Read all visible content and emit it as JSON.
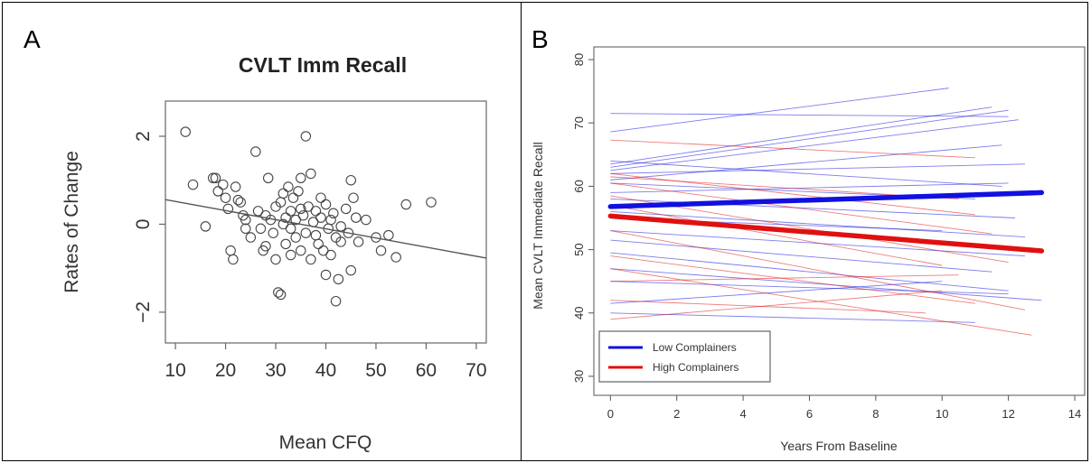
{
  "panel_labels": [
    "A",
    "B"
  ],
  "chart_data": [
    {
      "type": "scatter",
      "panel": "A",
      "title": "CVLT Imm Recall",
      "xlabel": "Mean CFQ",
      "ylabel": "Rates of Change",
      "xlim": [
        8,
        72
      ],
      "ylim": [
        -2.7,
        2.8
      ],
      "xticks": [
        10,
        20,
        30,
        40,
        50,
        60,
        70
      ],
      "yticks": [
        -2,
        0,
        2
      ],
      "grid": false,
      "marker": "open-circle",
      "points": [
        [
          12,
          2.1
        ],
        [
          13.5,
          0.9
        ],
        [
          16,
          -0.05
        ],
        [
          17.5,
          1.05
        ],
        [
          18,
          1.05
        ],
        [
          18.5,
          0.75
        ],
        [
          19.5,
          0.9
        ],
        [
          20,
          0.6
        ],
        [
          20.5,
          0.35
        ],
        [
          21,
          -0.6
        ],
        [
          21.5,
          -0.8
        ],
        [
          22,
          0.85
        ],
        [
          22.5,
          0.55
        ],
        [
          23,
          0.5
        ],
        [
          23.5,
          0.2
        ],
        [
          24,
          -0.1
        ],
        [
          25,
          -0.3
        ],
        [
          26,
          1.65
        ],
        [
          26.5,
          0.3
        ],
        [
          27,
          -0.1
        ],
        [
          27.5,
          -0.6
        ],
        [
          28,
          0.2
        ],
        [
          28.5,
          1.05
        ],
        [
          29,
          0.1
        ],
        [
          29.5,
          -0.2
        ],
        [
          30,
          -0.8
        ],
        [
          30.5,
          -1.55
        ],
        [
          31,
          -1.6
        ],
        [
          31,
          0.5
        ],
        [
          31.5,
          0.7
        ],
        [
          31.5,
          0.0
        ],
        [
          32,
          0.15
        ],
        [
          32,
          -0.45
        ],
        [
          32.5,
          0.85
        ],
        [
          33,
          0.3
        ],
        [
          33,
          -0.1
        ],
        [
          33.5,
          0.6
        ],
        [
          34,
          -0.3
        ],
        [
          34,
          0.1
        ],
        [
          34.5,
          0.75
        ],
        [
          35,
          1.05
        ],
        [
          35,
          -0.6
        ],
        [
          35.5,
          0.2
        ],
        [
          36,
          2.0
        ],
        [
          36,
          -0.2
        ],
        [
          36.5,
          0.4
        ],
        [
          37,
          1.15
        ],
        [
          37,
          -0.8
        ],
        [
          37.5,
          0.05
        ],
        [
          38,
          0.3
        ],
        [
          38.5,
          -0.45
        ],
        [
          39,
          0.15
        ],
        [
          39.5,
          -0.6
        ],
        [
          40,
          0.45
        ],
        [
          40,
          -1.15
        ],
        [
          40.5,
          -0.1
        ],
        [
          41,
          -0.7
        ],
        [
          41.5,
          0.25
        ],
        [
          42,
          -1.75
        ],
        [
          42,
          -0.3
        ],
        [
          42.5,
          -1.25
        ],
        [
          43,
          -0.05
        ],
        [
          44,
          0.35
        ],
        [
          44.5,
          -0.2
        ],
        [
          45,
          1.0
        ],
        [
          45,
          -1.05
        ],
        [
          45.5,
          0.6
        ],
        [
          46,
          0.15
        ],
        [
          46.5,
          -0.4
        ],
        [
          48,
          0.1
        ],
        [
          50,
          -0.3
        ],
        [
          51,
          -0.6
        ],
        [
          52.5,
          -0.25
        ],
        [
          54,
          -0.75
        ],
        [
          56,
          0.45
        ],
        [
          61,
          0.5
        ],
        [
          28,
          -0.5
        ],
        [
          30,
          0.4
        ],
        [
          33,
          -0.7
        ],
        [
          38,
          -0.25
        ],
        [
          41,
          0.1
        ],
        [
          43,
          -0.4
        ],
        [
          24,
          0.1
        ],
        [
          35,
          0.35
        ],
        [
          39,
          0.6
        ]
      ],
      "regression_line": [
        [
          8,
          0.56
        ],
        [
          72,
          -0.77
        ]
      ]
    },
    {
      "type": "line",
      "panel": "B",
      "xlabel": "Years From Baseline",
      "ylabel": "Mean CVLT Immediate Recall",
      "xlim": [
        -0.5,
        14.3
      ],
      "ylim": [
        27,
        82
      ],
      "xticks": [
        0,
        2,
        4,
        6,
        8,
        10,
        12,
        14
      ],
      "yticks": [
        30,
        40,
        50,
        60,
        70,
        80
      ],
      "grid": false,
      "legend": {
        "placement": "bottom-left",
        "entries": [
          {
            "label": "Low Complainers",
            "color": "#1010e0"
          },
          {
            "label": "High Complainers",
            "color": "#e01010"
          }
        ]
      },
      "series": [
        {
          "name": "Low Complainers",
          "color": "#1010e0",
          "x": [
            0,
            13
          ],
          "y": [
            56.8,
            59.0
          ]
        },
        {
          "name": "High Complainers",
          "color": "#e01010",
          "x": [
            0,
            13
          ],
          "y": [
            55.3,
            49.8
          ]
        }
      ],
      "individual_trajectories": [
        {
          "group": "low",
          "x": [
            0,
            10.2
          ],
          "y": [
            68.6,
            75.5
          ]
        },
        {
          "group": "low",
          "x": [
            0,
            12
          ],
          "y": [
            71.5,
            71.0
          ]
        },
        {
          "group": "low",
          "x": [
            0,
            11.5
          ],
          "y": [
            63.5,
            72.5
          ]
        },
        {
          "group": "low",
          "x": [
            0,
            12.3
          ],
          "y": [
            62.5,
            70.5
          ]
        },
        {
          "group": "low",
          "x": [
            0,
            11.8
          ],
          "y": [
            61.0,
            66.5
          ]
        },
        {
          "group": "low",
          "x": [
            0,
            12.5
          ],
          "y": [
            62.0,
            63.5
          ]
        },
        {
          "group": "low",
          "x": [
            0,
            11
          ],
          "y": [
            60.5,
            58.0
          ]
        },
        {
          "group": "low",
          "x": [
            0,
            12
          ],
          "y": [
            59.0,
            60.5
          ]
        },
        {
          "group": "low",
          "x": [
            0,
            12.2
          ],
          "y": [
            58.0,
            55.0
          ]
        },
        {
          "group": "low",
          "x": [
            0,
            10
          ],
          "y": [
            55.0,
            53.0
          ]
        },
        {
          "group": "low",
          "x": [
            0,
            12.5
          ],
          "y": [
            53.0,
            49.0
          ]
        },
        {
          "group": "low",
          "x": [
            0,
            11.5
          ],
          "y": [
            51.5,
            46.5
          ]
        },
        {
          "group": "low",
          "x": [
            0,
            12
          ],
          "y": [
            49.5,
            43.5
          ]
        },
        {
          "group": "low",
          "x": [
            0,
            13
          ],
          "y": [
            47.0,
            42.0
          ]
        },
        {
          "group": "low",
          "x": [
            0,
            12
          ],
          "y": [
            45.0,
            43.0
          ]
        },
        {
          "group": "low",
          "x": [
            0,
            11
          ],
          "y": [
            40.0,
            38.5
          ]
        },
        {
          "group": "low",
          "x": [
            0,
            10
          ],
          "y": [
            41.5,
            45.0
          ]
        },
        {
          "group": "low",
          "x": [
            0,
            12.5
          ],
          "y": [
            56.0,
            52.0
          ]
        },
        {
          "group": "low",
          "x": [
            0,
            12
          ],
          "y": [
            63.0,
            72.0
          ]
        },
        {
          "group": "low",
          "x": [
            0,
            11.8
          ],
          "y": [
            64.0,
            60.0
          ]
        },
        {
          "group": "high",
          "x": [
            0,
            11
          ],
          "y": [
            67.3,
            64.5
          ]
        },
        {
          "group": "high",
          "x": [
            0,
            10.5
          ],
          "y": [
            61.5,
            58.0
          ]
        },
        {
          "group": "high",
          "x": [
            0,
            11.5
          ],
          "y": [
            60.5,
            52.5
          ]
        },
        {
          "group": "high",
          "x": [
            0,
            12
          ],
          "y": [
            58.5,
            48.0
          ]
        },
        {
          "group": "high",
          "x": [
            0,
            10
          ],
          "y": [
            57.0,
            47.5
          ]
        },
        {
          "group": "high",
          "x": [
            0,
            12.5
          ],
          "y": [
            53.0,
            40.5
          ]
        },
        {
          "group": "high",
          "x": [
            0,
            11
          ],
          "y": [
            49.0,
            41.5
          ]
        },
        {
          "group": "high",
          "x": [
            0,
            12.7
          ],
          "y": [
            47.0,
            36.5
          ]
        },
        {
          "group": "high",
          "x": [
            0,
            10.5
          ],
          "y": [
            45.0,
            46.0
          ]
        },
        {
          "group": "high",
          "x": [
            0,
            9.5
          ],
          "y": [
            42.0,
            40.0
          ]
        },
        {
          "group": "high",
          "x": [
            0,
            10
          ],
          "y": [
            39.0,
            43.5
          ]
        },
        {
          "group": "high",
          "x": [
            0,
            11
          ],
          "y": [
            62.0,
            55.5
          ]
        }
      ]
    }
  ]
}
